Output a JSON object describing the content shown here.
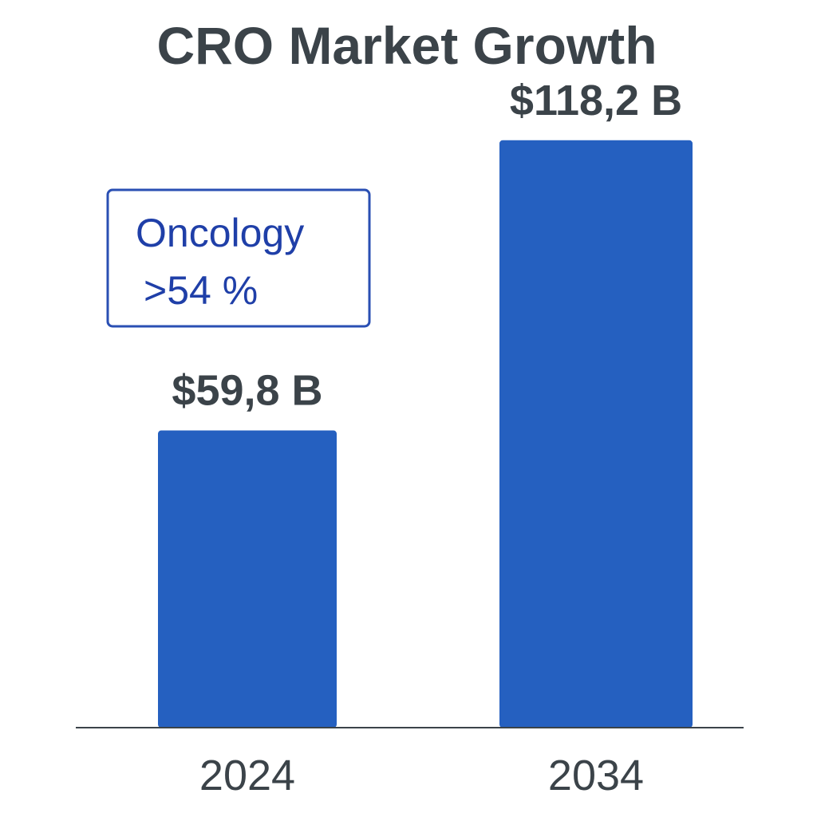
{
  "chart_data": {
    "type": "bar",
    "title": "CRO Market Growth",
    "categories": [
      "2024",
      "2034"
    ],
    "values": [
      59.8,
      118.2
    ],
    "value_labels": [
      "$59,8 B",
      "$118,2 B"
    ],
    "unit": "B",
    "ylim": [
      0,
      140
    ],
    "grid": false,
    "legend": "none",
    "bar_color": "#2560c0",
    "annotation": {
      "lines": [
        "Oncology",
        ">54 %"
      ],
      "border_color": "#2a4fb3",
      "text_color": "#1f3fa8"
    }
  }
}
